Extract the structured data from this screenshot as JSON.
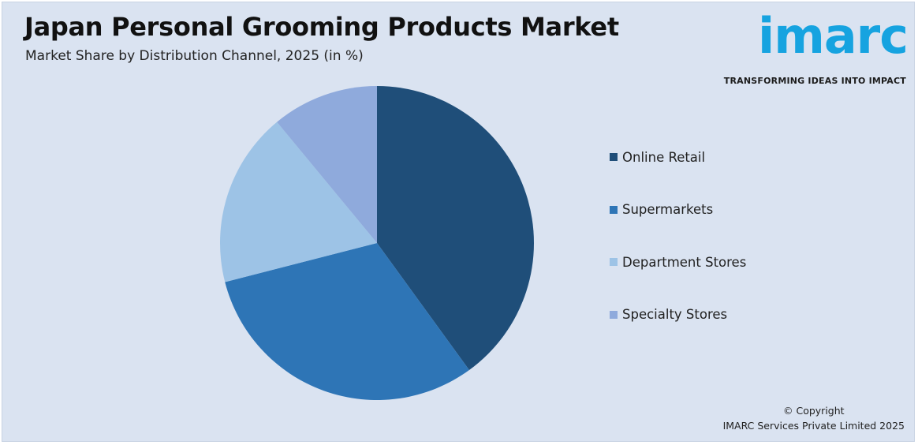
{
  "header": {
    "title": "Japan Personal Grooming Products Market",
    "subtitle": "Market Share by Distribution Channel, 2025 (in %)"
  },
  "logo": {
    "word": "imarc",
    "tagline": "TRANSFORMING IDEAS INTO IMPACT",
    "color": "#16a3e0"
  },
  "chart_data": {
    "type": "pie",
    "title": "Japan Personal Grooming Products Market",
    "subtitle": "Market Share by Distribution Channel, 2025 (in %)",
    "categories": [
      "Online Retail",
      "Supermarkets",
      "Department Stores",
      "Specialty Stores"
    ],
    "values": [
      40,
      31,
      18,
      11
    ],
    "colors": [
      "#1f4e79",
      "#2e75b6",
      "#9dc3e6",
      "#8faadc"
    ],
    "start_angle_deg": 0,
    "direction": "clockwise",
    "legend_position": "right"
  },
  "footer": {
    "copyright_line1": "© Copyright",
    "copyright_line2": "IMARC Services Private Limited 2025"
  }
}
